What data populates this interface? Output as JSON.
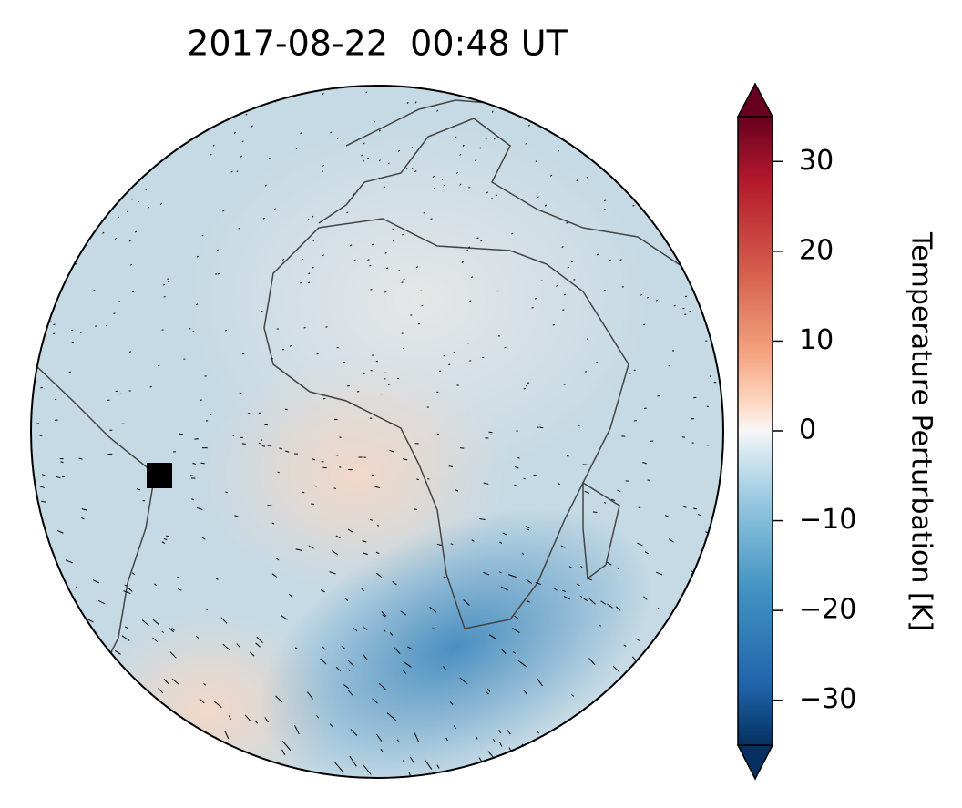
{
  "map": {
    "title": "2017-08-22  00:48 UT",
    "colorbar": {
      "label": "Temperature Perturbation [K]",
      "clim": [
        -35,
        35
      ],
      "ticks": [
        {
          "value": -30,
          "label": "−30"
        },
        {
          "value": -20,
          "label": "−20"
        },
        {
          "value": -10,
          "label": "−10"
        },
        0,
        10,
        20,
        30
      ]
    }
  }
}
